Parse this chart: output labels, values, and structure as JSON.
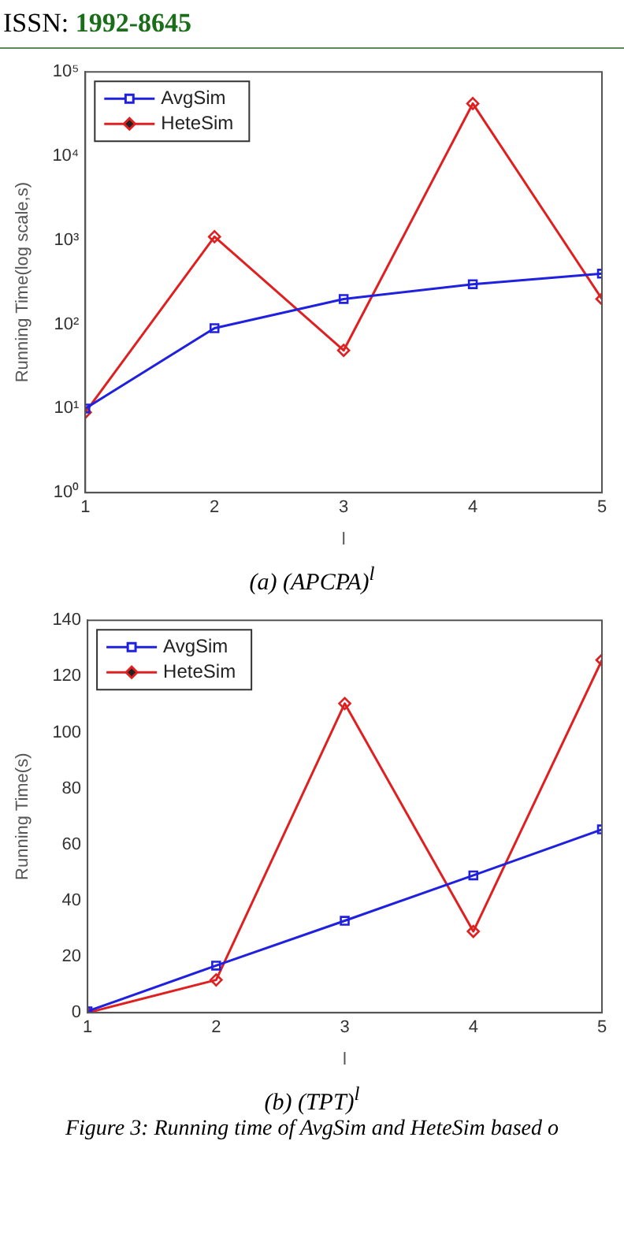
{
  "chart_data": [
    {
      "type": "line",
      "title": "(a) (APCPA)$^{l}$",
      "xlabel": "l",
      "ylabel": "Running Time(log scale,s)",
      "annotations": [
        "ISSN: 1992-8645"
      ],
      "x": [
        1,
        2,
        3,
        4,
        5
      ],
      "xlim": [
        1,
        5
      ],
      "xticks": [
        1,
        2,
        3,
        4,
        5
      ],
      "log": "y",
      "ylim": [
        1,
        100000
      ],
      "yticks": [
        {
          "value": 1,
          "label": "10⁰"
        },
        {
          "value": 10,
          "label": "10¹"
        },
        {
          "value": 100,
          "label": "10²"
        },
        {
          "value": 1000,
          "label": "10³"
        },
        {
          "value": 10000,
          "label": "10⁴"
        },
        {
          "value": 100000,
          "label": "10⁵"
        }
      ],
      "grid": false,
      "legend": "top left",
      "line_style": "solid",
      "series": [
        {
          "name": "AvgSim",
          "color": "#2020e0",
          "marker": "square",
          "values": [
            10,
            90,
            200,
            300,
            400
          ]
        },
        {
          "name": "HeteSim",
          "color": "#e02020",
          "marker": "diamond",
          "values": [
            9,
            1100,
            49,
            42000,
            200
          ]
        }
      ]
    },
    {
      "type": "line",
      "title": "(b) (TPT)$^{l}$",
      "xlabel": "l",
      "ylabel": "Running Time(s)",
      "annotations": [
        "Figure 3: Running time of AvgSim and HeteSim based o"
      ],
      "x": [
        1,
        2,
        3,
        4,
        5
      ],
      "xlim": [
        1,
        5
      ],
      "xticks": [
        1,
        2,
        3,
        4,
        5
      ],
      "ylim": [
        0,
        140
      ],
      "yticks": [
        0,
        20,
        40,
        60,
        80,
        100,
        120,
        140
      ],
      "grid": false,
      "legend": "top left",
      "line_style": "solid",
      "series": [
        {
          "name": "AvgSim",
          "color": "#2020e0",
          "marker": "square",
          "values": [
            0.5,
            16.8,
            32.8,
            49,
            65.4
          ]
        },
        {
          "name": "HeteSim",
          "color": "#e02020",
          "marker": "diamond",
          "values": [
            0,
            11.7,
            110.3,
            29,
            125.8
          ]
        }
      ]
    }
  ]
}
